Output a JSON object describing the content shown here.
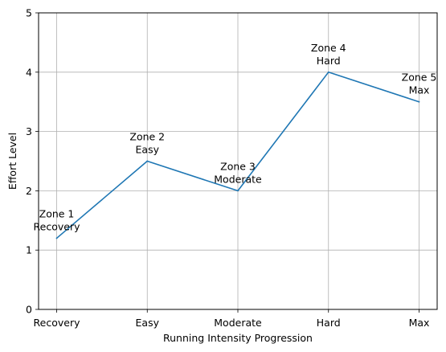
{
  "chart_data": {
    "type": "line",
    "categories": [
      "Recovery",
      "Easy",
      "Moderate",
      "Hard",
      "Max"
    ],
    "series": [
      {
        "values": [
          1.2,
          2.5,
          2.0,
          4.0,
          3.5
        ],
        "color": "#1f77b4"
      }
    ],
    "xlabel": "Running Intensity Progression",
    "ylabel": "Effort Level",
    "ylim": [
      0,
      5
    ],
    "yticks": [
      "0",
      "1",
      "2",
      "3",
      "4",
      "5"
    ],
    "grid": true,
    "annotations": [
      {
        "line1": "Zone 1",
        "line2": "Recovery"
      },
      {
        "line1": "Zone 2",
        "line2": "Easy"
      },
      {
        "line1": "Zone 3",
        "line2": "Moderate"
      },
      {
        "line1": "Zone 4",
        "line2": "Hard"
      },
      {
        "line1": "Zone 5",
        "line2": "Max"
      }
    ]
  }
}
